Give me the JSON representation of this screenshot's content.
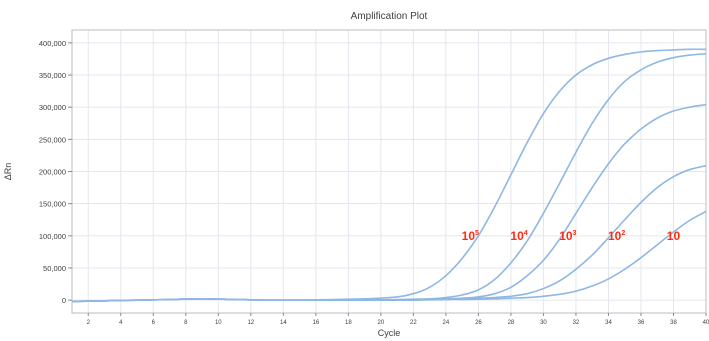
{
  "chart_data": {
    "type": "line",
    "title": "Amplification Plot",
    "xlabel": "Cycle",
    "ylabel": "ΔRn",
    "xlim": [
      1,
      40
    ],
    "ylim": [
      -20000,
      420000
    ],
    "grid": true,
    "x_ticks": [
      2,
      4,
      6,
      8,
      10,
      12,
      14,
      16,
      18,
      20,
      22,
      24,
      26,
      28,
      30,
      32,
      34,
      36,
      38,
      40
    ],
    "y_ticks": [
      0,
      50000,
      100000,
      150000,
      200000,
      250000,
      300000,
      350000,
      400000
    ],
    "y_tick_labels": [
      "0",
      "50,000",
      "100,000",
      "150,000",
      "200,000",
      "250,000",
      "300,000",
      "350,000",
      "400,000"
    ],
    "x": [
      1,
      3,
      5,
      7,
      9,
      11,
      13,
      15,
      17,
      19,
      21,
      22,
      23,
      24,
      25,
      26,
      27,
      28,
      29,
      30,
      31,
      32,
      33,
      34,
      35,
      36,
      37,
      38,
      39,
      40
    ],
    "series": [
      {
        "values": [
          -2000,
          -1000,
          0,
          1000,
          2000,
          1000,
          0,
          0,
          1000,
          2000,
          5000,
          10000,
          20000,
          38000,
          65000,
          100000,
          145000,
          195000,
          245000,
          290000,
          325000,
          350000,
          366000,
          376000,
          382000,
          386000,
          388000,
          389000,
          390000,
          390000
        ]
      },
      {
        "values": [
          -2000,
          -1000,
          0,
          1000,
          2000,
          1000,
          0,
          0,
          0,
          0,
          1000,
          1500,
          2000,
          4000,
          8000,
          16000,
          32000,
          58000,
          92000,
          135000,
          182000,
          230000,
          275000,
          312000,
          340000,
          358000,
          370000,
          377000,
          381000,
          383000
        ]
      },
      {
        "values": [
          -2000,
          -1000,
          0,
          1000,
          2000,
          1000,
          0,
          0,
          0,
          0,
          500,
          1000,
          1000,
          2000,
          3000,
          5000,
          10000,
          20000,
          38000,
          62000,
          95000,
          135000,
          175000,
          212000,
          243000,
          266000,
          283000,
          294000,
          300000,
          304000
        ]
      },
      {
        "values": [
          -2000,
          -1000,
          0,
          1000,
          2000,
          1000,
          0,
          0,
          0,
          0,
          0,
          500,
          1000,
          1000,
          2000,
          3000,
          4000,
          6000,
          10000,
          18000,
          30000,
          48000,
          70000,
          97000,
          125000,
          152000,
          175000,
          192000,
          203000,
          209000
        ]
      },
      {
        "values": [
          -2000,
          -1000,
          0,
          1000,
          2000,
          1000,
          0,
          0,
          0,
          0,
          0,
          0,
          500,
          1000,
          1000,
          1500,
          2000,
          3000,
          4000,
          6000,
          9000,
          14000,
          22000,
          33000,
          48000,
          66000,
          86000,
          106000,
          124000,
          138000
        ]
      }
    ],
    "annotations": [
      {
        "base": "10",
        "sup": "5",
        "x": 25.5,
        "y": 100000
      },
      {
        "base": "10",
        "sup": "4",
        "x": 28.5,
        "y": 100000
      },
      {
        "base": "10",
        "sup": "3",
        "x": 31.5,
        "y": 100000
      },
      {
        "base": "10",
        "sup": "2",
        "x": 34.5,
        "y": 100000
      },
      {
        "base": "10",
        "sup": "",
        "x": 38.0,
        "y": 100000
      }
    ],
    "colors": {
      "curve": "#8fb7e3",
      "annotation": "#ff2a12"
    }
  }
}
